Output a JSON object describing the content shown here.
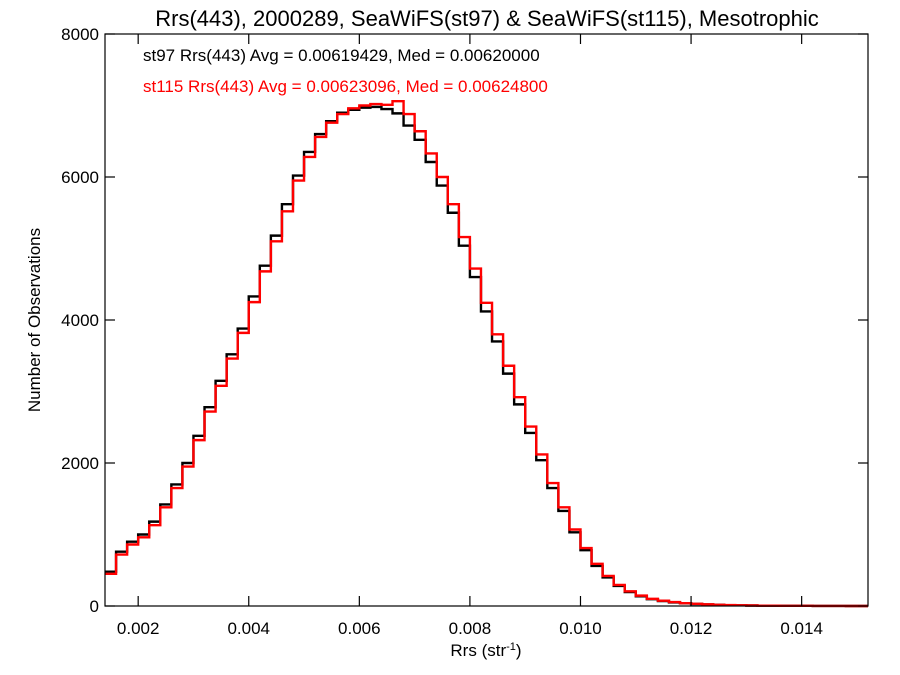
{
  "chart_data": {
    "type": "line",
    "title": "Rrs(443), 2000289, SeaWiFS(st97) & SeaWiFS(st115), Mesotrophic",
    "xlabel": "Rrs (str",
    "xlabel_sup": "-1",
    "xlabel_suffix": ")",
    "ylabel": "Number of Observations",
    "xlim": [
      0.0014,
      0.0152
    ],
    "ylim": [
      0,
      8000
    ],
    "xticks": [
      0.002,
      0.004,
      0.006,
      0.008,
      0.01,
      0.012,
      0.014
    ],
    "xtick_labels": [
      "0.002",
      "0.004",
      "0.006",
      "0.008",
      "0.010",
      "0.012",
      "0.014"
    ],
    "yticks": [
      0,
      2000,
      4000,
      6000,
      8000
    ],
    "ytick_labels": [
      "0",
      "2000",
      "4000",
      "6000",
      "8000"
    ],
    "grid": false,
    "legend_position": "top-left",
    "series": [
      {
        "name": "st97 Rrs(443) Avg = 0.00619429, Med = 0.00620000",
        "color": "#000000",
        "x": [
          0.0014,
          0.0016,
          0.0018,
          0.002,
          0.0022,
          0.0024,
          0.0026,
          0.0028,
          0.003,
          0.0032,
          0.0034,
          0.0036,
          0.0038,
          0.004,
          0.0042,
          0.0044,
          0.0046,
          0.0048,
          0.005,
          0.0052,
          0.0054,
          0.0056,
          0.0058,
          0.006,
          0.0062,
          0.0064,
          0.0066,
          0.0068,
          0.007,
          0.0072,
          0.0074,
          0.0076,
          0.0078,
          0.008,
          0.0082,
          0.0084,
          0.0086,
          0.0088,
          0.009,
          0.0092,
          0.0094,
          0.0096,
          0.0098,
          0.01,
          0.0102,
          0.0104,
          0.0106,
          0.0108,
          0.011,
          0.0112,
          0.0114,
          0.0116,
          0.0118,
          0.012,
          0.0122,
          0.0124,
          0.0126,
          0.0128,
          0.013,
          0.0132,
          0.0134,
          0.0136,
          0.0138,
          0.014,
          0.0142,
          0.0144,
          0.0146,
          0.0148,
          0.015,
          0.0152
        ],
        "y": [
          480,
          760,
          900,
          1000,
          1180,
          1420,
          1700,
          2000,
          2380,
          2780,
          3150,
          3520,
          3880,
          4330,
          4760,
          5180,
          5620,
          6020,
          6350,
          6600,
          6780,
          6900,
          6940,
          6970,
          6980,
          6950,
          6890,
          6720,
          6520,
          6210,
          5880,
          5500,
          5040,
          4600,
          4120,
          3700,
          3250,
          2820,
          2420,
          2040,
          1650,
          1330,
          1030,
          780,
          560,
          400,
          280,
          195,
          135,
          95,
          70,
          50,
          38,
          28,
          22,
          16,
          12,
          9,
          7,
          5,
          4,
          3,
          2,
          2,
          1,
          1,
          1,
          0,
          0,
          0
        ]
      },
      {
        "name": "st115 Rrs(443) Avg = 0.00623096, Med = 0.00624800",
        "color": "#ff0000",
        "x": [
          0.0014,
          0.0016,
          0.0018,
          0.002,
          0.0022,
          0.0024,
          0.0026,
          0.0028,
          0.003,
          0.0032,
          0.0034,
          0.0036,
          0.0038,
          0.004,
          0.0042,
          0.0044,
          0.0046,
          0.0048,
          0.005,
          0.0052,
          0.0054,
          0.0056,
          0.0058,
          0.006,
          0.0062,
          0.0064,
          0.0066,
          0.0068,
          0.007,
          0.0072,
          0.0074,
          0.0076,
          0.0078,
          0.008,
          0.0082,
          0.0084,
          0.0086,
          0.0088,
          0.009,
          0.0092,
          0.0094,
          0.0096,
          0.0098,
          0.01,
          0.0102,
          0.0104,
          0.0106,
          0.0108,
          0.011,
          0.0112,
          0.0114,
          0.0116,
          0.0118,
          0.012,
          0.0122,
          0.0124,
          0.0126,
          0.0128,
          0.013,
          0.0132,
          0.0134,
          0.0136,
          0.0138,
          0.014,
          0.0142,
          0.0144,
          0.0146,
          0.0148,
          0.015,
          0.0152
        ],
        "y": [
          450,
          720,
          860,
          960,
          1130,
          1380,
          1650,
          1950,
          2320,
          2720,
          3080,
          3460,
          3820,
          4250,
          4680,
          5100,
          5520,
          5950,
          6280,
          6560,
          6760,
          6880,
          6960,
          7000,
          7020,
          7010,
          7060,
          6880,
          6640,
          6330,
          6000,
          5620,
          5160,
          4720,
          4240,
          3800,
          3360,
          2920,
          2510,
          2120,
          1720,
          1380,
          1070,
          810,
          590,
          420,
          295,
          205,
          145,
          100,
          75,
          55,
          40,
          30,
          23,
          17,
          13,
          10,
          7,
          5,
          4,
          3,
          2,
          2,
          1,
          1,
          1,
          0,
          0,
          0
        ]
      }
    ]
  }
}
